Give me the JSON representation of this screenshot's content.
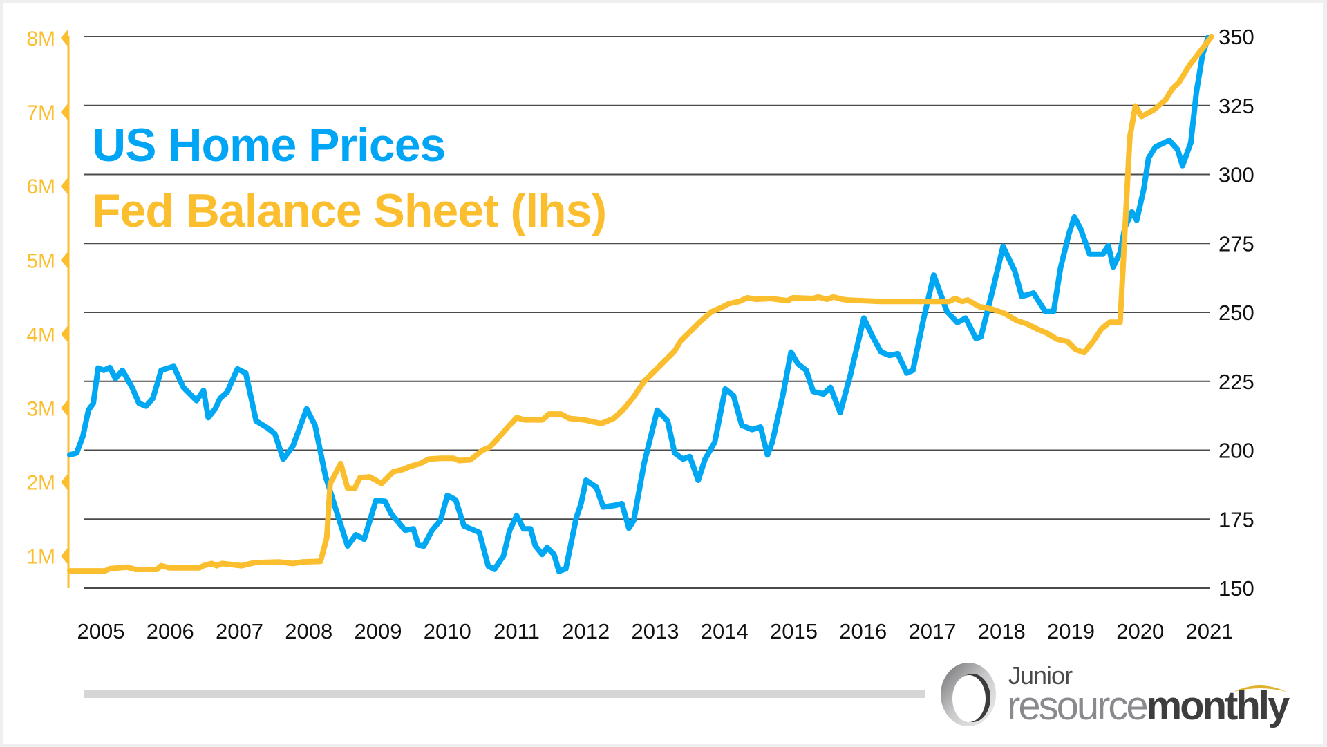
{
  "chart_data": {
    "type": "line",
    "title": "US Home Prices",
    "subtitle": "Fed Balance Sheet (lhs)",
    "x_ticks": [
      "2005",
      "2006",
      "2007",
      "2008",
      "2009",
      "2010",
      "2011",
      "2012",
      "2013",
      "2014",
      "2015",
      "2016",
      "2017",
      "2018",
      "2019",
      "2020",
      "2021"
    ],
    "xlim": [
      2005,
      2021
    ],
    "y_right": {
      "ticks": [
        "150",
        "175",
        "200",
        "225",
        "250",
        "275",
        "300",
        "325",
        "350"
      ],
      "range": [
        150,
        350
      ]
    },
    "y_left": {
      "ticks": [
        "1M",
        "2M",
        "3M",
        "4M",
        "5M",
        "6M",
        "7M",
        "8M"
      ],
      "range_millions": [
        0.5,
        8
      ]
    },
    "grid": true,
    "series": [
      {
        "name": "US Home Prices",
        "axis": "right",
        "color": "#00A8F4",
        "points": [
          [
            2004.55,
            198.3
          ],
          [
            2004.65,
            199
          ],
          [
            2004.74,
            205
          ],
          [
            2004.82,
            214.5
          ],
          [
            2004.89,
            217
          ],
          [
            2004.96,
            229.8
          ],
          [
            2005.04,
            229
          ],
          [
            2005.13,
            230
          ],
          [
            2005.21,
            226
          ],
          [
            2005.31,
            229
          ],
          [
            2005.45,
            222.8
          ],
          [
            2005.55,
            217
          ],
          [
            2005.65,
            216
          ],
          [
            2005.75,
            218.8
          ],
          [
            2005.87,
            229
          ],
          [
            2006.05,
            230.4
          ],
          [
            2006.19,
            222.8
          ],
          [
            2006.38,
            218
          ],
          [
            2006.48,
            221.7
          ],
          [
            2006.55,
            211.8
          ],
          [
            2006.65,
            215
          ],
          [
            2006.72,
            218.8
          ],
          [
            2006.82,
            221
          ],
          [
            2006.97,
            229.5
          ],
          [
            2007.09,
            228
          ],
          [
            2007.24,
            210.6
          ],
          [
            2007.41,
            208
          ],
          [
            2007.51,
            206
          ],
          [
            2007.63,
            196.8
          ],
          [
            2007.77,
            201.4
          ],
          [
            2007.97,
            215
          ],
          [
            2008.09,
            209
          ],
          [
            2008.24,
            190.7
          ],
          [
            2008.41,
            177
          ],
          [
            2008.56,
            165.3
          ],
          [
            2008.68,
            169.3
          ],
          [
            2008.8,
            167.7
          ],
          [
            2008.97,
            181.8
          ],
          [
            2009.1,
            181.5
          ],
          [
            2009.19,
            177
          ],
          [
            2009.39,
            171
          ],
          [
            2009.51,
            171.5
          ],
          [
            2009.58,
            165.6
          ],
          [
            2009.66,
            165.3
          ],
          [
            2009.78,
            171
          ],
          [
            2009.9,
            174.5
          ],
          [
            2010.0,
            183.6
          ],
          [
            2010.12,
            182
          ],
          [
            2010.24,
            172.5
          ],
          [
            2010.46,
            170.2
          ],
          [
            2010.59,
            158
          ],
          [
            2010.68,
            156.8
          ],
          [
            2010.81,
            161.7
          ],
          [
            2010.9,
            171
          ],
          [
            2011.0,
            176.3
          ],
          [
            2011.1,
            171.5
          ],
          [
            2011.2,
            171.5
          ],
          [
            2011.27,
            165.3
          ],
          [
            2011.37,
            162.2
          ],
          [
            2011.44,
            164.7
          ],
          [
            2011.54,
            162.2
          ],
          [
            2011.61,
            156.1
          ],
          [
            2011.71,
            157
          ],
          [
            2011.86,
            175.4
          ],
          [
            2011.93,
            180.6
          ],
          [
            2012.0,
            189.1
          ],
          [
            2012.15,
            186.6
          ],
          [
            2012.25,
            179.4
          ],
          [
            2012.42,
            180
          ],
          [
            2012.52,
            180.6
          ],
          [
            2012.62,
            171.7
          ],
          [
            2012.69,
            174.5
          ],
          [
            2012.84,
            195.3
          ],
          [
            2013.03,
            214.5
          ],
          [
            2013.18,
            210.6
          ],
          [
            2013.28,
            199
          ],
          [
            2013.4,
            196.8
          ],
          [
            2013.5,
            197.7
          ],
          [
            2013.62,
            189.1
          ],
          [
            2013.72,
            196.8
          ],
          [
            2013.86,
            202.9
          ],
          [
            2014.01,
            222.2
          ],
          [
            2014.13,
            219.8
          ],
          [
            2014.25,
            209
          ],
          [
            2014.4,
            207.5
          ],
          [
            2014.52,
            208.4
          ],
          [
            2014.62,
            198.3
          ],
          [
            2014.69,
            202.9
          ],
          [
            2014.84,
            219.8
          ],
          [
            2014.96,
            235.6
          ],
          [
            2015.06,
            231.3
          ],
          [
            2015.18,
            229
          ],
          [
            2015.28,
            221.3
          ],
          [
            2015.43,
            220.4
          ],
          [
            2015.53,
            222.8
          ],
          [
            2015.67,
            213.6
          ],
          [
            2015.82,
            227.6
          ],
          [
            2016.01,
            247.9
          ],
          [
            2016.14,
            241.1
          ],
          [
            2016.26,
            235.6
          ],
          [
            2016.38,
            234.4
          ],
          [
            2016.5,
            235
          ],
          [
            2016.63,
            228
          ],
          [
            2016.72,
            229
          ],
          [
            2016.87,
            247.3
          ],
          [
            2017.02,
            263.5
          ],
          [
            2017.21,
            250.3
          ],
          [
            2017.36,
            246.3
          ],
          [
            2017.48,
            247.9
          ],
          [
            2017.63,
            240.5
          ],
          [
            2017.7,
            241.1
          ],
          [
            2017.87,
            258
          ],
          [
            2018.02,
            273.9
          ],
          [
            2018.19,
            265
          ],
          [
            2018.29,
            255.8
          ],
          [
            2018.46,
            257
          ],
          [
            2018.63,
            250.3
          ],
          [
            2018.75,
            250.3
          ],
          [
            2018.85,
            266.2
          ],
          [
            2018.97,
            278.4
          ],
          [
            2019.05,
            284.6
          ],
          [
            2019.14,
            280.3
          ],
          [
            2019.27,
            271.1
          ],
          [
            2019.46,
            271.1
          ],
          [
            2019.54,
            274.2
          ],
          [
            2019.61,
            266.5
          ],
          [
            2019.71,
            271.7
          ],
          [
            2019.78,
            280.9
          ],
          [
            2019.88,
            286.4
          ],
          [
            2019.95,
            283.4
          ],
          [
            2020.05,
            294.6
          ],
          [
            2020.12,
            306
          ],
          [
            2020.22,
            310
          ],
          [
            2020.42,
            312.4
          ],
          [
            2020.54,
            309
          ],
          [
            2020.61,
            303.2
          ],
          [
            2020.73,
            311.5
          ],
          [
            2020.81,
            329.8
          ],
          [
            2020.9,
            343.6
          ],
          [
            2020.98,
            349.7
          ]
        ]
      },
      {
        "name": "Fed Balance Sheet (lhs)",
        "axis": "left",
        "unit": "millions",
        "color": "#FBBE2E",
        "points": [
          [
            2004.55,
            0.8
          ],
          [
            2005.06,
            0.8
          ],
          [
            2005.13,
            0.83
          ],
          [
            2005.38,
            0.85
          ],
          [
            2005.5,
            0.82
          ],
          [
            2005.81,
            0.82
          ],
          [
            2005.87,
            0.87
          ],
          [
            2005.99,
            0.84
          ],
          [
            2006.42,
            0.84
          ],
          [
            2006.48,
            0.87
          ],
          [
            2006.6,
            0.9
          ],
          [
            2006.67,
            0.87
          ],
          [
            2006.75,
            0.9
          ],
          [
            2007.03,
            0.87
          ],
          [
            2007.21,
            0.91
          ],
          [
            2007.58,
            0.92
          ],
          [
            2007.77,
            0.9
          ],
          [
            2007.9,
            0.92
          ],
          [
            2008.17,
            0.93
          ],
          [
            2008.26,
            1.25
          ],
          [
            2008.31,
            1.98
          ],
          [
            2008.46,
            2.25
          ],
          [
            2008.56,
            1.92
          ],
          [
            2008.66,
            1.91
          ],
          [
            2008.74,
            2.06
          ],
          [
            2008.88,
            2.07
          ],
          [
            2009.05,
            1.98
          ],
          [
            2009.22,
            2.14
          ],
          [
            2009.36,
            2.17
          ],
          [
            2009.46,
            2.21
          ],
          [
            2009.61,
            2.25
          ],
          [
            2009.73,
            2.31
          ],
          [
            2009.9,
            2.32
          ],
          [
            2010.09,
            2.32
          ],
          [
            2010.17,
            2.29
          ],
          [
            2010.33,
            2.3
          ],
          [
            2010.51,
            2.43
          ],
          [
            2010.61,
            2.47
          ],
          [
            2010.76,
            2.62
          ],
          [
            2010.88,
            2.75
          ],
          [
            2011.0,
            2.87
          ],
          [
            2011.12,
            2.84
          ],
          [
            2011.37,
            2.84
          ],
          [
            2011.47,
            2.92
          ],
          [
            2011.64,
            2.92
          ],
          [
            2011.76,
            2.86
          ],
          [
            2011.98,
            2.84
          ],
          [
            2012.22,
            2.79
          ],
          [
            2012.4,
            2.86
          ],
          [
            2012.54,
            2.98
          ],
          [
            2012.69,
            3.15
          ],
          [
            2012.84,
            3.36
          ],
          [
            2012.98,
            3.49
          ],
          [
            2013.13,
            3.63
          ],
          [
            2013.28,
            3.77
          ],
          [
            2013.37,
            3.91
          ],
          [
            2013.5,
            4.03
          ],
          [
            2013.64,
            4.16
          ],
          [
            2013.81,
            4.3
          ],
          [
            2013.96,
            4.36
          ],
          [
            2014.06,
            4.41
          ],
          [
            2014.21,
            4.44
          ],
          [
            2014.33,
            4.49
          ],
          [
            2014.45,
            4.47
          ],
          [
            2014.67,
            4.48
          ],
          [
            2014.91,
            4.45
          ],
          [
            2014.99,
            4.49
          ],
          [
            2015.28,
            4.48
          ],
          [
            2015.35,
            4.5
          ],
          [
            2015.48,
            4.47
          ],
          [
            2015.57,
            4.5
          ],
          [
            2015.7,
            4.47
          ],
          [
            2015.77,
            4.46
          ],
          [
            2016.26,
            4.44
          ],
          [
            2017.24,
            4.44
          ],
          [
            2017.33,
            4.48
          ],
          [
            2017.43,
            4.44
          ],
          [
            2017.51,
            4.46
          ],
          [
            2017.68,
            4.37
          ],
          [
            2017.85,
            4.34
          ],
          [
            2018.04,
            4.28
          ],
          [
            2018.22,
            4.18
          ],
          [
            2018.36,
            4.14
          ],
          [
            2018.51,
            4.07
          ],
          [
            2018.66,
            4.01
          ],
          [
            2018.8,
            3.93
          ],
          [
            2018.95,
            3.9
          ],
          [
            2019.07,
            3.79
          ],
          [
            2019.19,
            3.75
          ],
          [
            2019.32,
            3.9
          ],
          [
            2019.44,
            4.07
          ],
          [
            2019.56,
            4.16
          ],
          [
            2019.71,
            4.16
          ],
          [
            2019.85,
            6.66
          ],
          [
            2019.93,
            7.08
          ],
          [
            2020.02,
            6.94
          ],
          [
            2020.2,
            7.03
          ],
          [
            2020.37,
            7.17
          ],
          [
            2020.46,
            7.31
          ],
          [
            2020.56,
            7.4
          ],
          [
            2020.71,
            7.63
          ],
          [
            2020.9,
            7.86
          ],
          [
            2021.03,
            8.02
          ]
        ]
      }
    ]
  },
  "colors": {
    "left_axis": "#FBBE2E",
    "grid": "#4a4a4a",
    "footer_bar": "#d6d6d6"
  },
  "logo": {
    "line1": "Junior",
    "word_light": "resource",
    "word_bold": "monthly"
  }
}
